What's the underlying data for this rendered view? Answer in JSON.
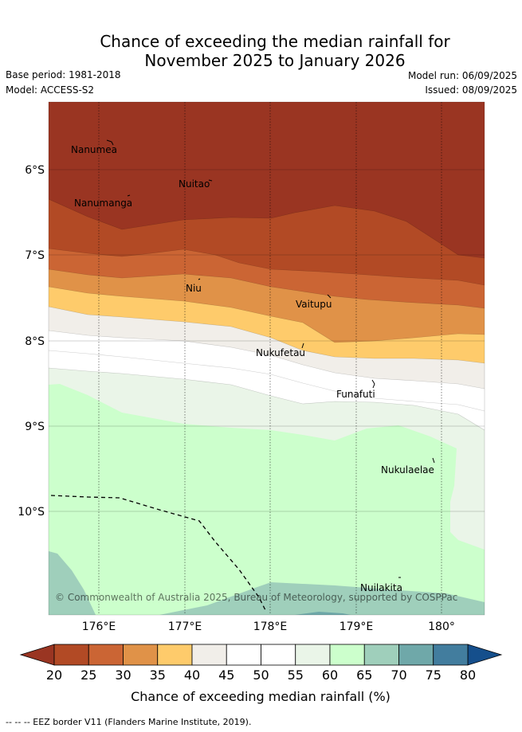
{
  "title": {
    "line1": "Chance of exceeding the median rainfall for",
    "line2": "November 2025 to January 2026"
  },
  "meta": {
    "base_period": "Base period: 1981-2018",
    "model": "Model: ACCESS-S2",
    "model_run": "Model run: 06/09/2025",
    "issued": "Issued: 08/09/2025"
  },
  "map": {
    "lat_ticks": [
      "6°S",
      "7°S",
      "8°S",
      "9°S",
      "10°S"
    ],
    "lon_ticks": [
      "176°E",
      "177°E",
      "178°E",
      "179°E",
      "180°"
    ],
    "places": [
      "Nanumea",
      "Nuitao",
      "Nanumanga",
      "Niu",
      "Vaitupu",
      "Nukufetau",
      "Funafuti",
      "Nukulaelae",
      "Nuilakita"
    ],
    "copyright": "© Commonwealth of Australia 2025, Bureau of Meteorology, supported by COSPPac"
  },
  "colorbar": {
    "ticks": [
      "20",
      "25",
      "30",
      "35",
      "40",
      "45",
      "50",
      "55",
      "60",
      "65",
      "70",
      "75",
      "80"
    ],
    "colors": [
      "#b24a25",
      "#cb6534",
      "#e09248",
      "#fecb6b",
      "#f1eee9",
      "#ffffff",
      "#ffffff",
      "#eaf5e8",
      "#ccffcc",
      "#9fcfbb",
      "#6fa8a9",
      "#427d9e"
    ],
    "under_color": "#9a3522",
    "over_color": "#154f8c",
    "label": "Chance of exceeding median rainfall (%)"
  },
  "footnote": "--  --  -- EEZ border V11 (Flanders Marine Institute, 2019)."
}
